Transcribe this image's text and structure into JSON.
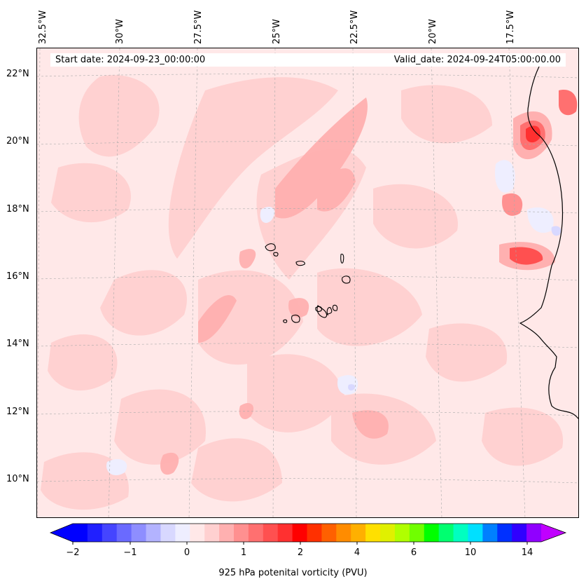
{
  "map": {
    "start_label": "Start date: 2024-09-23_00:00:00",
    "valid_label": "Valid_date: 2024-09-24T05:00:00.00",
    "lon_labels": [
      "32.5°W",
      "30°W",
      "27.5°W",
      "25°W",
      "22.5°W",
      "20°W",
      "17.5°W"
    ],
    "lat_labels": [
      "22°N",
      "20°N",
      "18°N",
      "16°N",
      "14°N",
      "12°N",
      "10°N"
    ]
  },
  "colorbar": {
    "title": "925 hPa potenital vorticity (PVU)",
    "tick_labels": [
      "−2",
      "−1",
      "0",
      "1",
      "2",
      "4",
      "6",
      "10",
      "14"
    ],
    "colors": [
      "#0000ff",
      "#2020ff",
      "#4545ff",
      "#6a6aff",
      "#8e8eff",
      "#b3b3ff",
      "#d8d8ff",
      "#eeeeff",
      "#ffe8e8",
      "#ffd0d0",
      "#ffb0b0",
      "#ff9090",
      "#ff7070",
      "#ff5050",
      "#ff3030",
      "#ff0000",
      "#ff3000",
      "#ff6000",
      "#ff8c00",
      "#ffb000",
      "#ffe000",
      "#e0f000",
      "#b0ff00",
      "#70ff00",
      "#00ff00",
      "#00ff70",
      "#00ffc0",
      "#00e0ff",
      "#0080ff",
      "#0030ff",
      "#3000ff",
      "#9000ff"
    ],
    "extend_low": "#0000ff",
    "extend_high": "#c000ff"
  }
}
